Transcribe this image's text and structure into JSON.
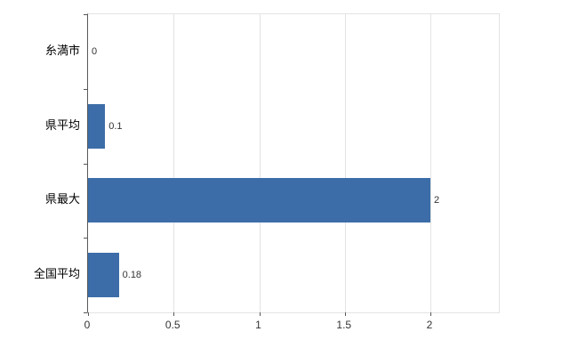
{
  "chart_data": {
    "type": "bar",
    "orientation": "horizontal",
    "title": "",
    "xlabel": "",
    "ylabel": "",
    "categories": [
      "糸満市",
      "県平均",
      "県最大",
      "全国平均"
    ],
    "values": [
      0,
      0.1,
      2,
      0.18
    ],
    "value_labels": [
      "0",
      "0.1",
      "2",
      "0.18"
    ],
    "x_ticks": [
      0,
      0.5,
      1,
      1.5,
      2
    ],
    "x_tick_labels": [
      "0",
      "0.5",
      "1",
      "1.5",
      "2"
    ],
    "xlim": [
      0,
      2.4
    ],
    "grid": true,
    "legend": false,
    "colors": {
      "bar": "#3c6da8",
      "grid": "#e3e3e3",
      "axis": "#595959",
      "text": "#333333"
    }
  }
}
